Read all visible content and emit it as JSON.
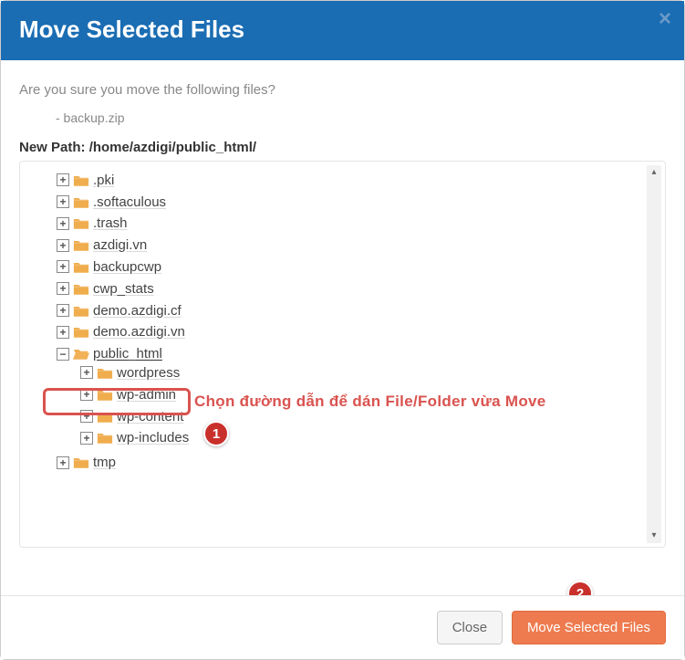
{
  "header": {
    "title": "Move Selected Files",
    "close_glyph": "×"
  },
  "body": {
    "question": "Are you sure you move the following files?",
    "files": [
      "- backup.zip"
    ],
    "new_path_label": "New Path: ",
    "new_path_value": "/home/azdigi/public_html/"
  },
  "tree": {
    "nodes": [
      {
        "expand": "+",
        "open": false,
        "label": ".pki",
        "depth": 0
      },
      {
        "expand": "+",
        "open": false,
        "label": ".softaculous",
        "depth": 0
      },
      {
        "expand": "+",
        "open": false,
        "label": ".trash",
        "depth": 0
      },
      {
        "expand": "+",
        "open": false,
        "label": "azdigi.vn",
        "depth": 0
      },
      {
        "expand": "+",
        "open": false,
        "label": "backupcwp",
        "depth": 0
      },
      {
        "expand": "+",
        "open": false,
        "label": "cwp_stats",
        "depth": 0
      },
      {
        "expand": "+",
        "open": false,
        "label": "demo.azdigi.cf",
        "depth": 0
      },
      {
        "expand": "+",
        "open": false,
        "label": "demo.azdigi.vn",
        "depth": 0
      },
      {
        "expand": "−",
        "open": true,
        "label": "public_html",
        "depth": 0,
        "selected": true
      },
      {
        "expand": "+",
        "open": false,
        "label": "wordpress",
        "depth": 1
      },
      {
        "expand": "+",
        "open": false,
        "label": "wp-admin",
        "depth": 1
      },
      {
        "expand": "+",
        "open": false,
        "label": "wp-content",
        "depth": 1
      },
      {
        "expand": "+",
        "open": false,
        "label": "wp-includes",
        "depth": 1
      },
      {
        "expand": "+",
        "open": false,
        "label": "tmp",
        "depth": 0
      }
    ]
  },
  "annotations": {
    "text1": "Chọn đường dẫn để dán File/Folder vừa Move",
    "callout1": "1",
    "callout2": "2",
    "colors": {
      "highlight": "#d9534f",
      "callout_bg": "#c9302c"
    }
  },
  "footer": {
    "close_label": "Close",
    "move_label": "Move Selected Files"
  },
  "icons": {
    "folder_closed_fill": "#f0ad4e",
    "folder_open_fill": "#f0ad4e"
  }
}
